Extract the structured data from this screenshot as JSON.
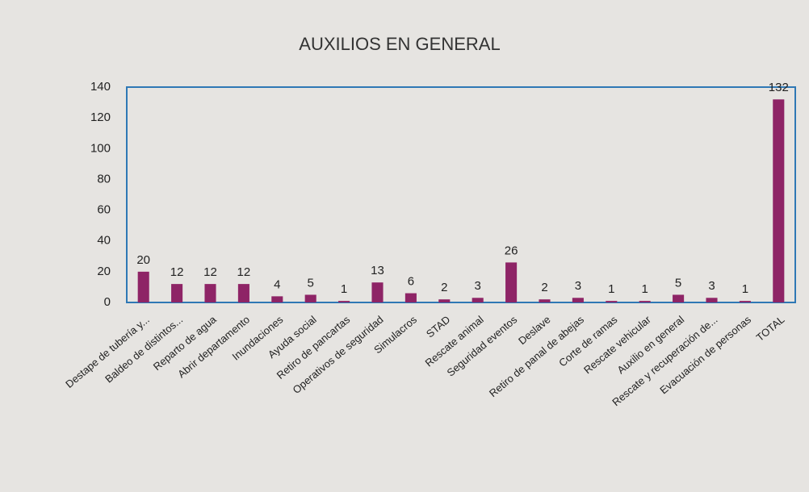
{
  "chart_data": {
    "type": "bar",
    "title": "AUXILIOS EN GENERAL",
    "categories": [
      "Destape de tubería y...",
      "Baldeo de distintos...",
      "Reparto de agua",
      "Abrir departamento",
      "Inundaciones",
      "Ayuda social",
      "Retiro de pancartas",
      "Operativos de seguridad",
      "Simulacros",
      "STAD",
      "Rescate animal",
      "Seguridad eventos",
      "Deslave",
      "Retiro de panal de abejas",
      "Corte de ramas",
      "Rescate vehicular",
      "Auxilio en general",
      "Rescate y recuperación de...",
      "Evacuación de personas",
      "TOTAL"
    ],
    "values": [
      20,
      12,
      12,
      12,
      4,
      5,
      1,
      13,
      6,
      2,
      3,
      26,
      2,
      3,
      1,
      1,
      5,
      3,
      1,
      132
    ],
    "color": "#8e2466",
    "frame_color": "#2f78b5",
    "ylim": [
      0,
      140
    ],
    "yticks": [
      0,
      20,
      40,
      60,
      80,
      100,
      120,
      140
    ],
    "grid": false
  }
}
